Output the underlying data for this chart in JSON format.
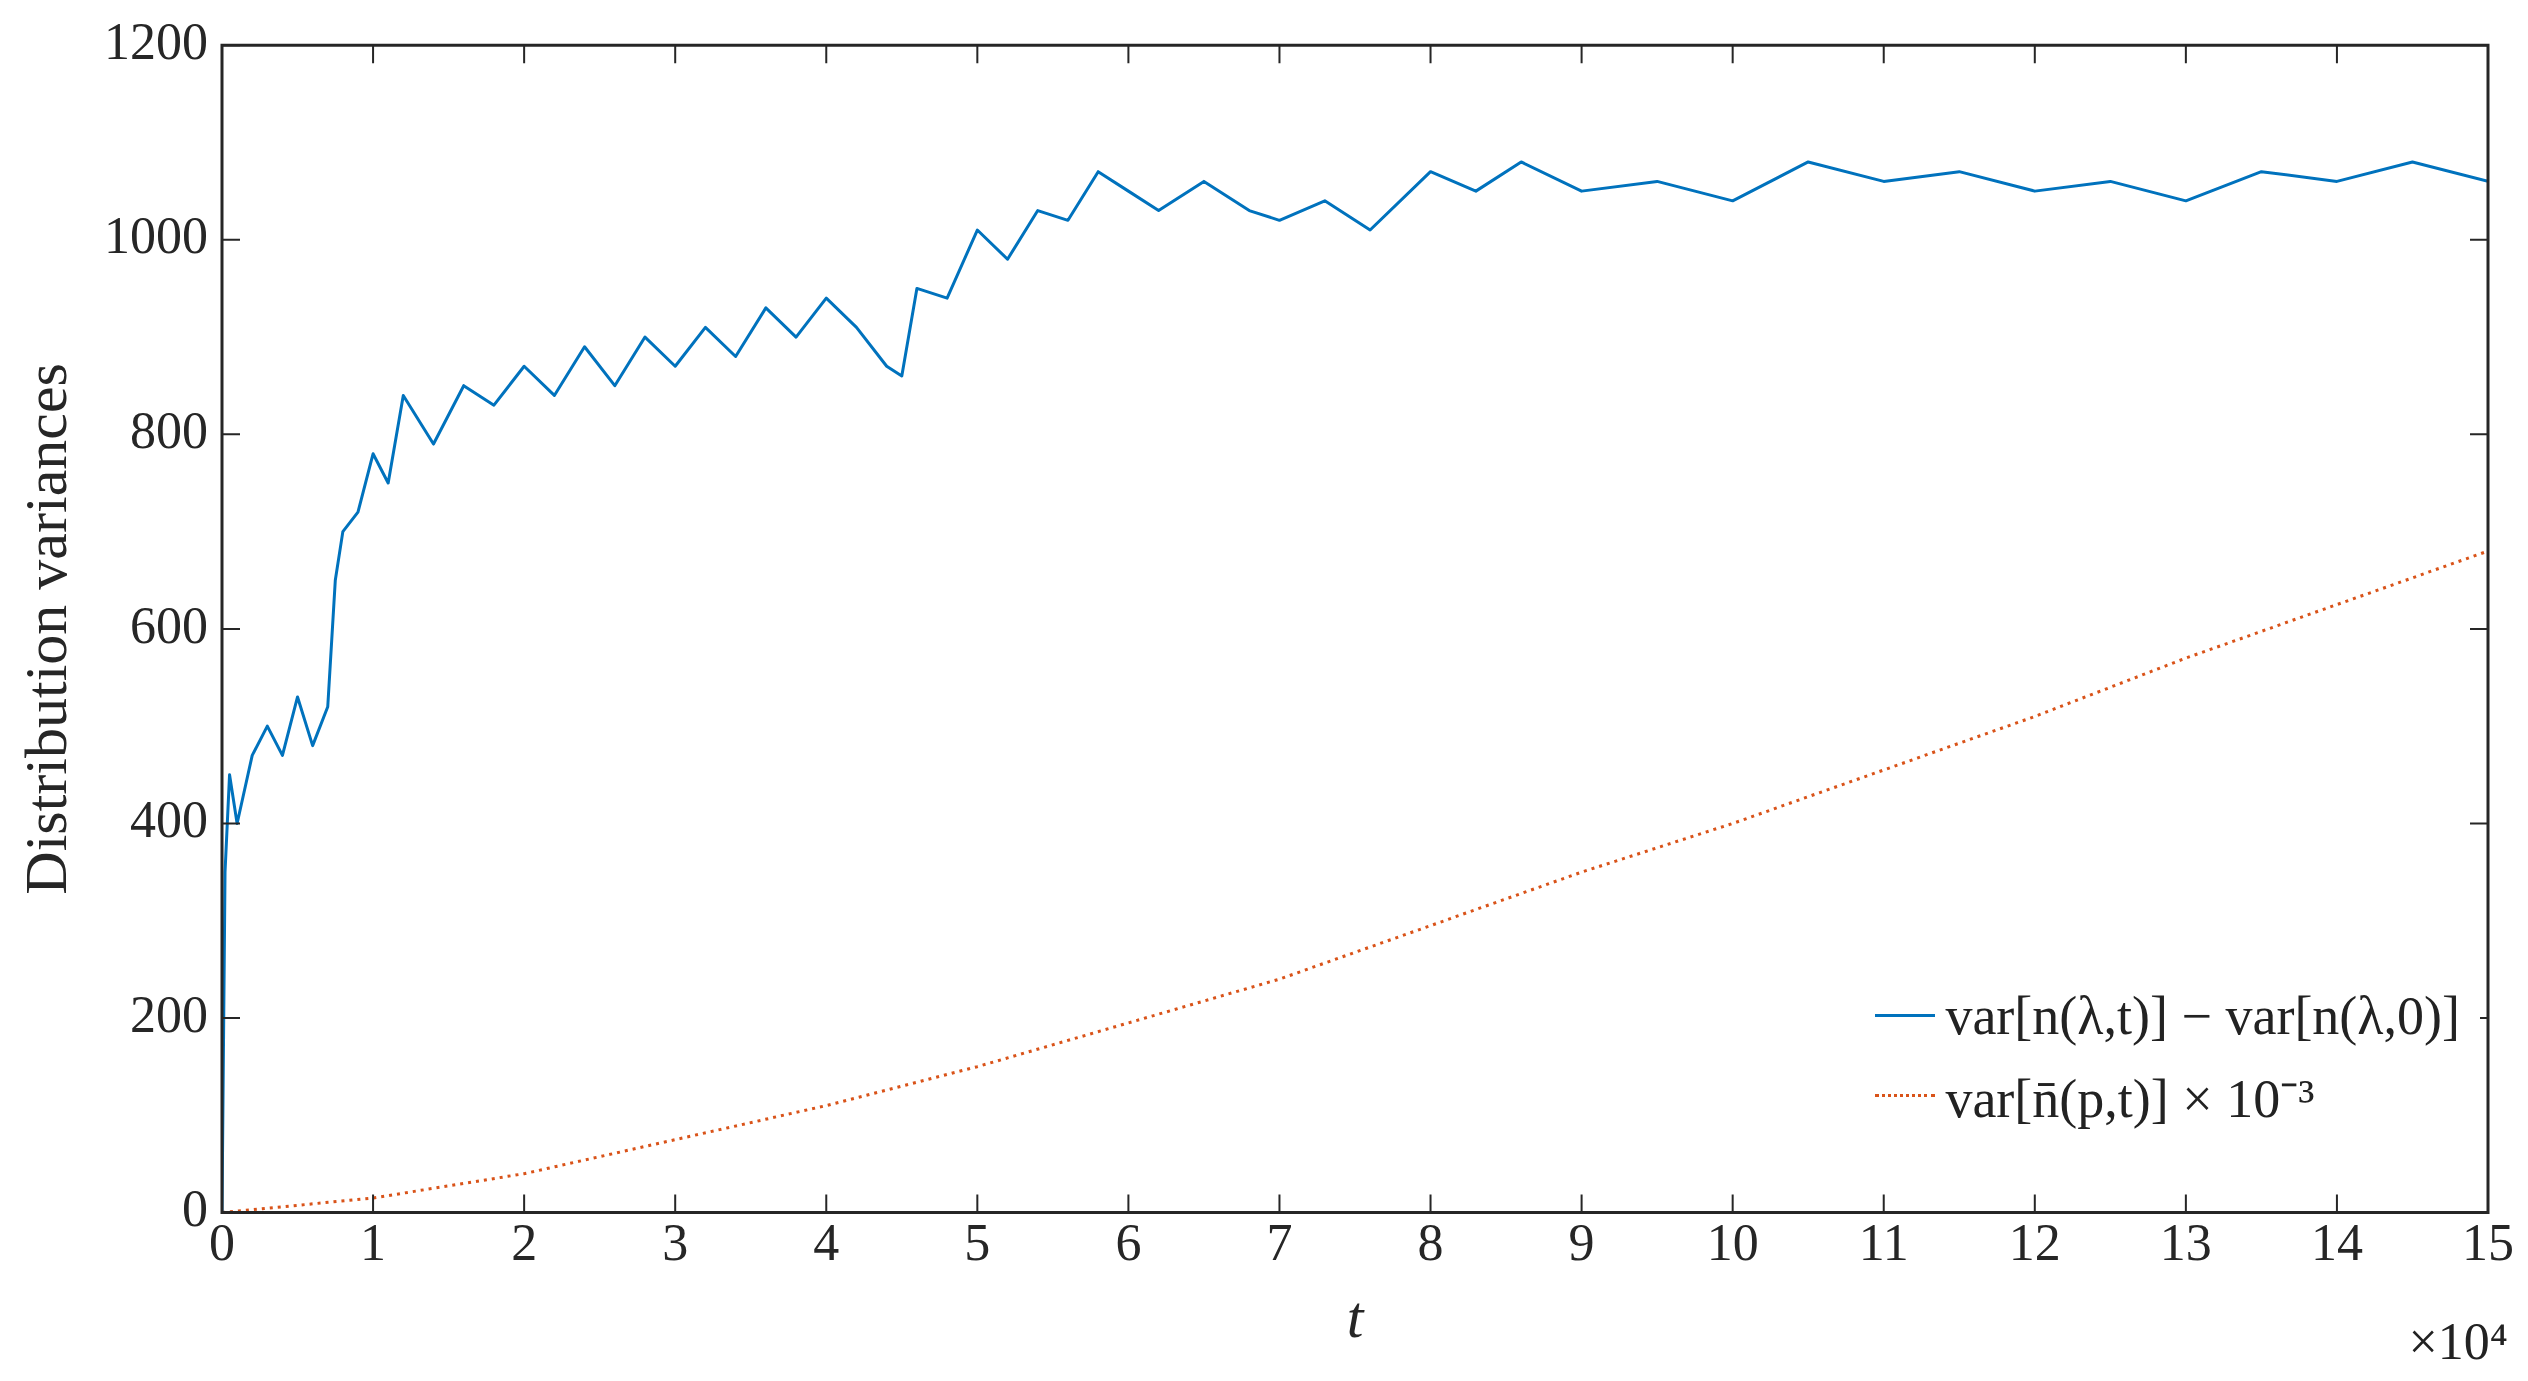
{
  "chart_data": {
    "type": "line",
    "xlabel": "t",
    "ylabel": "Distribution variances",
    "annotations": [
      "×10⁴"
    ],
    "xlim": [
      0,
      15
    ],
    "ylim": [
      0,
      1200
    ],
    "xticks": [
      0,
      1,
      2,
      3,
      4,
      5,
      6,
      7,
      8,
      9,
      10,
      11,
      12,
      13,
      14,
      15
    ],
    "yticks": [
      0,
      200,
      400,
      600,
      800,
      1000,
      1200
    ],
    "grid": false,
    "legend": "bottom right",
    "marker": "none",
    "series": [
      {
        "name": "var[n(λ,t)] − var[n(λ,0)]",
        "color": "#0072bd",
        "line_style": "solid",
        "x": [
          0,
          0.02,
          0.05,
          0.1,
          0.2,
          0.3,
          0.4,
          0.5,
          0.6,
          0.7,
          0.75,
          0.8,
          0.9,
          1,
          1.1,
          1.2,
          1.4,
          1.6,
          1.8,
          2,
          2.2,
          2.4,
          2.6,
          2.8,
          3,
          3.2,
          3.4,
          3.6,
          3.8,
          4,
          4.2,
          4.4,
          4.5,
          4.6,
          4.8,
          5,
          5.2,
          5.4,
          5.6,
          5.8,
          6,
          6.2,
          6.5,
          6.8,
          7,
          7.3,
          7.6,
          8,
          8.3,
          8.6,
          9,
          9.5,
          10,
          10.5,
          11,
          11.5,
          12,
          12.5,
          13,
          13.5,
          14,
          14.5,
          15
        ],
        "values": [
          0,
          350,
          450,
          400,
          470,
          500,
          470,
          530,
          480,
          520,
          650,
          700,
          720,
          780,
          750,
          840,
          790,
          850,
          830,
          870,
          840,
          890,
          850,
          900,
          870,
          910,
          880,
          930,
          900,
          940,
          910,
          870,
          860,
          950,
          940,
          1010,
          980,
          1030,
          1020,
          1070,
          1050,
          1030,
          1060,
          1030,
          1020,
          1040,
          1010,
          1070,
          1050,
          1080,
          1050,
          1060,
          1040,
          1080,
          1060,
          1070,
          1050,
          1060,
          1040,
          1070,
          1060,
          1080,
          1060
        ]
      },
      {
        "name": "var[n̄(p,t)] × 10⁻³",
        "color": "#d95319",
        "line_style": "dotted",
        "x": [
          0,
          1,
          2,
          3,
          4,
          5,
          6,
          7,
          8,
          9,
          10,
          11,
          12,
          13,
          14,
          15
        ],
        "values": [
          0,
          15,
          40,
          75,
          110,
          150,
          195,
          240,
          295,
          350,
          400,
          455,
          510,
          570,
          625,
          680
        ]
      }
    ]
  }
}
